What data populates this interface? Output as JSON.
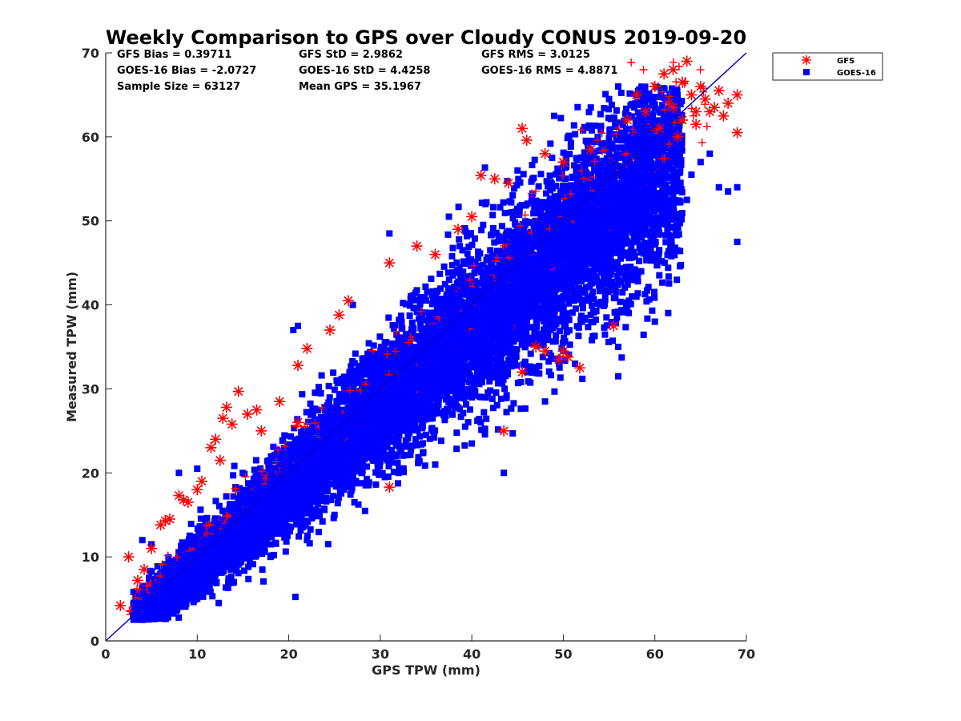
{
  "chart_data": {
    "type": "scatter",
    "title": "Weekly Comparison to GPS over Cloudy CONUS 2019-09-20",
    "xlabel": "GPS TPW (mm)",
    "ylabel": "Measured TPW (mm)",
    "xlim": [
      0,
      70
    ],
    "ylim": [
      0,
      70
    ],
    "xticks": [
      "0",
      "10",
      "20",
      "30",
      "40",
      "50",
      "60",
      "70"
    ],
    "yticks": [
      "0",
      "10",
      "20",
      "30",
      "40",
      "50",
      "60",
      "70"
    ],
    "grid": false,
    "legend_position": "outside top-right",
    "reference_line": {
      "x": [
        0,
        70
      ],
      "y": [
        0,
        70
      ],
      "color": "#0000cc"
    },
    "stats": [
      "GFS Bias = 0.39711",
      "GFS StD = 2.9862",
      "GFS RMS = 3.0125",
      "GOES-16 Bias = -2.0727",
      "GOES-16 StD = 4.4258",
      "GOES-16 RMS = 4.8871",
      "Sample Size = 63127",
      "Mean GPS = 35.1967"
    ],
    "series": [
      {
        "name": "GFS",
        "marker": "asterisk",
        "color": "#ff0000",
        "points": [
          [
            1.6,
            4.2
          ],
          [
            2.5,
            10.0
          ],
          [
            3.5,
            7.2
          ],
          [
            4.2,
            8.5
          ],
          [
            5.0,
            11.0
          ],
          [
            6.0,
            13.8
          ],
          [
            7.0,
            14.5
          ],
          [
            8.0,
            17.3
          ],
          [
            9.0,
            16.5
          ],
          [
            10.5,
            19.0
          ],
          [
            11.5,
            23.0
          ],
          [
            12.0,
            24.0
          ],
          [
            12.8,
            26.5
          ],
          [
            13.2,
            27.8
          ],
          [
            13.8,
            25.8
          ],
          [
            14.5,
            29.7
          ],
          [
            15.5,
            27.0
          ],
          [
            16.5,
            27.5
          ],
          [
            21.0,
            32.8
          ],
          [
            21.0,
            26.0
          ],
          [
            22.0,
            34.8
          ],
          [
            24.5,
            37.0
          ],
          [
            25.5,
            38.8
          ],
          [
            26.5,
            40.5
          ],
          [
            31.0,
            45.0
          ],
          [
            34.0,
            47.0
          ],
          [
            38.5,
            49.0
          ],
          [
            40.0,
            50.5
          ],
          [
            41.0,
            55.4
          ],
          [
            42.5,
            55.0
          ],
          [
            45.5,
            61.0
          ],
          [
            46.0,
            59.6
          ],
          [
            48.0,
            58.0
          ],
          [
            50.0,
            57.0
          ],
          [
            60.0,
            66.0
          ],
          [
            61.0,
            67.5
          ],
          [
            62.0,
            68.0
          ],
          [
            63.5,
            69.0
          ],
          [
            64.0,
            65.0
          ],
          [
            65.0,
            66.0
          ],
          [
            66.0,
            63.0
          ],
          [
            67.0,
            65.5
          ],
          [
            68.0,
            64.0
          ],
          [
            69.0,
            65.0
          ],
          [
            69.0,
            60.5
          ],
          [
            58.0,
            65.0
          ],
          [
            59.0,
            63.0
          ],
          [
            62.5,
            60.0
          ],
          [
            63.0,
            62.0
          ],
          [
            64.5,
            61.5
          ],
          [
            61.5,
            64.0
          ],
          [
            65.5,
            64.5
          ],
          [
            66.5,
            63.5
          ],
          [
            67.5,
            62.5
          ],
          [
            51.8,
            32.5
          ],
          [
            49.5,
            33.5
          ],
          [
            50.0,
            34.5
          ],
          [
            48.0,
            34.5
          ],
          [
            45.5,
            32.0
          ],
          [
            43.5,
            25.0
          ],
          [
            31.0,
            18.3
          ],
          [
            55.5,
            37.5
          ],
          [
            47.0,
            35.0
          ],
          [
            50.5,
            33.8
          ],
          [
            6.5,
            14.3
          ],
          [
            8.5,
            16.8
          ],
          [
            10.0,
            18.0
          ],
          [
            12.5,
            21.5
          ],
          [
            17.0,
            25.0
          ],
          [
            19.0,
            28.5
          ],
          [
            36.0,
            46.0
          ],
          [
            44.0,
            54.5
          ],
          [
            53.0,
            58.5
          ],
          [
            57.0,
            62.0
          ],
          [
            60.5,
            61.0
          ],
          [
            62.0,
            63.5
          ],
          [
            63.0,
            66.5
          ],
          [
            64.5,
            63.0
          ]
        ]
      },
      {
        "name": "GOES-16",
        "marker": "square",
        "color": "#0000ff",
        "points": [
          [
            3.0,
            3.0
          ],
          [
            4.0,
            12.0
          ],
          [
            5.0,
            11.5
          ],
          [
            8.0,
            20.0
          ],
          [
            10.0,
            20.5
          ],
          [
            20.5,
            37.0
          ],
          [
            21.0,
            37.5
          ],
          [
            27.0,
            40.0
          ],
          [
            31.0,
            48.5
          ],
          [
            37.5,
            50.5
          ],
          [
            41.5,
            52.0
          ],
          [
            45.0,
            56.0
          ],
          [
            49.0,
            62.5
          ],
          [
            53.0,
            63.5
          ],
          [
            55.0,
            64.5
          ],
          [
            56.0,
            66.0
          ],
          [
            58.0,
            65.0
          ],
          [
            60.0,
            63.5
          ],
          [
            65.0,
            57.0
          ],
          [
            66.0,
            58.0
          ],
          [
            67.0,
            54.0
          ],
          [
            68.0,
            53.5
          ],
          [
            69.0,
            54.0
          ],
          [
            69.0,
            47.5
          ],
          [
            60.0,
            38.0
          ],
          [
            57.0,
            43.0
          ],
          [
            56.0,
            35.0
          ],
          [
            56.0,
            31.5
          ],
          [
            50.0,
            34.5
          ],
          [
            48.0,
            28.5
          ],
          [
            46.0,
            32.0
          ],
          [
            43.5,
            20.0
          ],
          [
            40.0,
            23.5
          ],
          [
            36.0,
            21.0
          ],
          [
            32.0,
            20.0
          ],
          [
            30.5,
            19.5
          ],
          [
            28.0,
            20.0
          ],
          [
            25.0,
            15.0
          ],
          [
            22.0,
            12.0
          ],
          [
            18.0,
            10.0
          ],
          [
            14.0,
            7.0
          ],
          [
            10.0,
            5.0
          ],
          [
            7.0,
            4.0
          ],
          [
            4.5,
            4.5
          ],
          [
            62.0,
            53.0
          ],
          [
            63.5,
            52.5
          ],
          [
            64.0,
            55.5
          ],
          [
            61.0,
            50.0
          ],
          [
            58.5,
            44.0
          ],
          [
            54.0,
            40.0
          ],
          [
            52.0,
            38.0
          ],
          [
            57.5,
            41.0
          ],
          [
            59.5,
            46.0
          ]
        ]
      }
    ]
  },
  "legend": {
    "items": [
      {
        "label": "GFS"
      },
      {
        "label": "GOES-16"
      }
    ]
  }
}
